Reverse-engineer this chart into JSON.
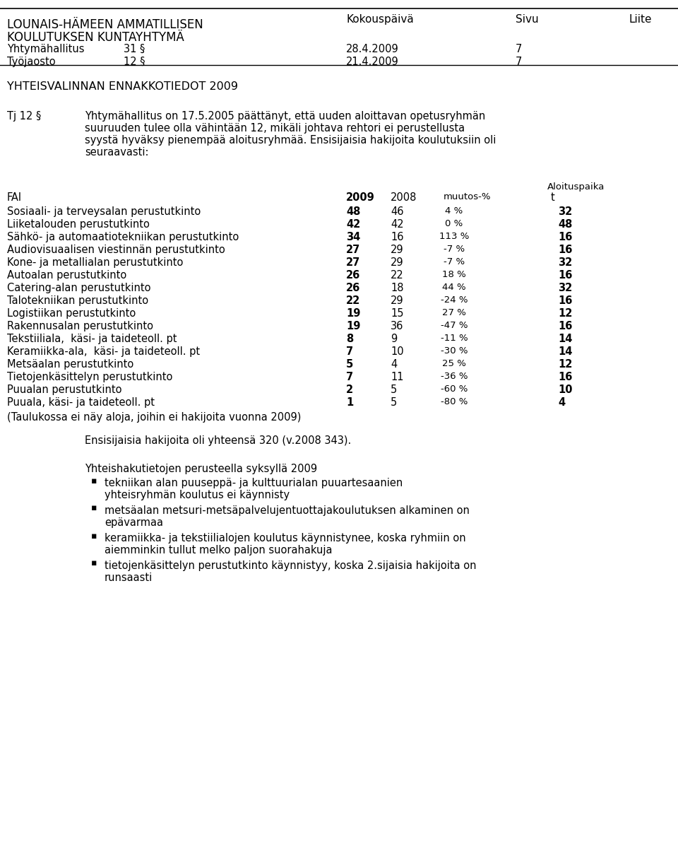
{
  "header_left_line1": "LOUNAIS-HÄMEEN AMMATILLISEN",
  "header_left_line2": "KOULUTUKSEN KUNTAYHTYMÄ",
  "header_col2": "Kokouspäivä",
  "header_col3": "Sivu",
  "header_col4": "Liite",
  "row1_col1": "Yhtymähallitus",
  "row1_col2": "31 §",
  "row1_col3": "28.4.2009",
  "row1_col4": "7",
  "row2_col1": "Työjaosto",
  "row2_col2": "12 §",
  "row2_col3": "21.4.2009",
  "row2_col4": "7",
  "section_title": "YHTEISVALINNAN ENNAKKOTIEDOT 2009",
  "paragraph_label": "Tj 12 §",
  "paragraph_lines": [
    "Yhtymähallitus on 17.5.2005 päättänyt, että uuden aloittavan opetusryhmän",
    "suuruuden tulee olla vähintään 12, mikäli johtava rehtori ei perustellusta",
    "syystä hyväksy pienempää aloitusryhmää. Ensisijaisia hakijoita koulutuksiin oli",
    "seuraavasti:"
  ],
  "table_rows": [
    [
      "Sosiaali- ja terveysalan perustutkinto",
      "48",
      "46",
      "4 %",
      "32"
    ],
    [
      "Liiketalouden perustutkinto",
      "42",
      "42",
      "0 %",
      "48"
    ],
    [
      "Sähkö- ja automaatiotekniikan perustutkinto",
      "34",
      "16",
      "113 %",
      "16"
    ],
    [
      "Audiovisuaalisen viestinnän perustutkinto",
      "27",
      "29",
      "-7 %",
      "16"
    ],
    [
      "Kone- ja metallialan perustutkinto",
      "27",
      "29",
      "-7 %",
      "32"
    ],
    [
      "Autoalan perustutkinto",
      "26",
      "22",
      "18 %",
      "16"
    ],
    [
      "Catering-alan perustutkinto",
      "26",
      "18",
      "44 %",
      "32"
    ],
    [
      "Talotekniikan perustutkinto",
      "22",
      "29",
      "-24 %",
      "16"
    ],
    [
      "Logistiikan perustutkinto",
      "19",
      "15",
      "27 %",
      "12"
    ],
    [
      "Rakennusalan perustutkinto",
      "19",
      "36",
      "-47 %",
      "16"
    ],
    [
      "Tekstiiliala,  käsi- ja taideteoll. pt",
      "8",
      "9",
      "-11 %",
      "14"
    ],
    [
      "Keramiikka-ala,  käsi- ja taideteoll. pt",
      "7",
      "10",
      "-30 %",
      "14"
    ],
    [
      "Metsäalan perustutkinto",
      "5",
      "4",
      "25 %",
      "12"
    ],
    [
      "Tietojenkäsittelyn perustutkinto",
      "7",
      "11",
      "-36 %",
      "16"
    ],
    [
      "Puualan perustutkinto",
      "2",
      "5",
      "-60 %",
      "10"
    ],
    [
      "Puuala, käsi- ja taideteoll. pt",
      "1",
      "5",
      "-80 %",
      "4"
    ]
  ],
  "table_note": "(Taulukossa ei näy aloja, joihin ei hakijoita vuonna 2009)",
  "summary_text": "Ensisijaisia hakijoita oli yhteensä 320 (v.2008 343).",
  "bullet_header": "Yhteishakutietojen perusteella syksyllä 2009",
  "bullets": [
    [
      "tekniikan alan puuseppä- ja kulttuurialan puuartesaanien",
      "yhteisryhmän koulutus ei käynnisty"
    ],
    [
      "metsäalan metsuri-metsäpalvelujentuottajakoulutuksen alkaminen on",
      "epävarmaa"
    ],
    [
      "keramiikka- ja tekstiilialojen koulutus käynnistynee, koska ryhmiin on",
      "aiemminkin tullut melko paljon suorahakuja"
    ],
    [
      "tietojenkäsittelyn perustutkinto käynnistyy, koska 2.sijaisia hakijoita on",
      "runsaasti"
    ]
  ],
  "bg_color": "#ffffff",
  "text_color": "#000000"
}
